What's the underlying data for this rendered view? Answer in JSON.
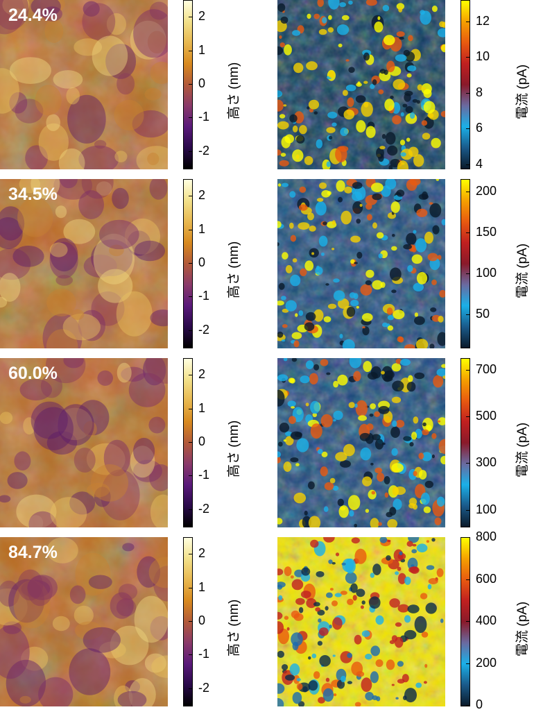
{
  "rows": [
    {
      "label": "24.4%",
      "height_bar": {
        "label": "高さ (nm)",
        "ticks": [
          "2",
          "1",
          "0",
          "-1",
          "-2"
        ],
        "tick_values": [
          2,
          1,
          0,
          -1,
          -2
        ],
        "range": [
          -2.5,
          2.5
        ]
      },
      "current_bar": {
        "label": "電流 (pA)",
        "ticks": [
          "12",
          "10",
          "8",
          "6",
          "4"
        ],
        "tick_values": [
          12,
          10,
          8,
          6,
          4
        ],
        "range": [
          3.8,
          13.2
        ]
      }
    },
    {
      "label": "34.5%",
      "height_bar": {
        "label": "高さ (nm)",
        "ticks": [
          "2",
          "1",
          "0",
          "-1",
          "-2"
        ],
        "tick_values": [
          2,
          1,
          0,
          -1,
          -2
        ],
        "range": [
          -2.5,
          2.5
        ]
      },
      "current_bar": {
        "label": "電流 (pA)",
        "ticks": [
          "200",
          "150",
          "100",
          "50"
        ],
        "tick_values": [
          200,
          150,
          100,
          50
        ],
        "range": [
          10,
          215
        ]
      }
    },
    {
      "label": "60.0%",
      "height_bar": {
        "label": "高さ (nm)",
        "ticks": [
          "2",
          "1",
          "0",
          "-1",
          "-2"
        ],
        "tick_values": [
          2,
          1,
          0,
          -1,
          -2
        ],
        "range": [
          -2.5,
          2.5
        ]
      },
      "current_bar": {
        "label": "電流 (pA)",
        "ticks": [
          "700",
          "500",
          "300",
          "100"
        ],
        "tick_values": [
          700,
          500,
          300,
          100
        ],
        "range": [
          30,
          750
        ]
      }
    },
    {
      "label": "84.7%",
      "height_bar": {
        "label": "高さ (nm)",
        "ticks": [
          "2",
          "1",
          "0",
          "-1",
          "-2"
        ],
        "tick_values": [
          2,
          1,
          0,
          -1,
          -2
        ],
        "range": [
          -2.5,
          2.5
        ]
      },
      "current_bar": {
        "label": "電流 (pA)",
        "ticks": [
          "800",
          "600",
          "400",
          "200",
          "0"
        ],
        "tick_values": [
          800,
          600,
          400,
          200,
          0
        ],
        "range": [
          0,
          800
        ]
      }
    }
  ],
  "colormaps": {
    "height": [
      "#000000",
      "#2a0a4a",
      "#5a1a7a",
      "#8a3a6a",
      "#b25a3a",
      "#d88a20",
      "#e8b850",
      "#f2e08a",
      "#ffffe0"
    ],
    "current": [
      "#0a1a2a",
      "#1a5a8a",
      "#1ab0e8",
      "#6a6aa0",
      "#8a1a2a",
      "#c02020",
      "#e85a10",
      "#f5a000",
      "#ffff00"
    ]
  }
}
